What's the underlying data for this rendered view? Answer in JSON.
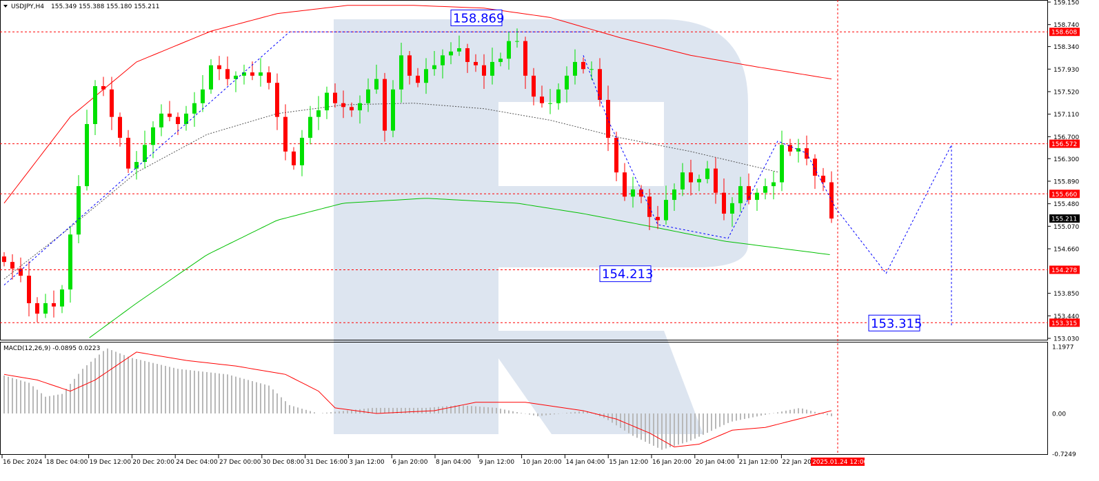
{
  "header": {
    "symbol": "USDJPY,H4",
    "ohlc": "155.349 155.388 155.180 155.211"
  },
  "macd_header": "MACD(12,26,9) -0.0895 0.0223",
  "colors": {
    "bull": "#00e000",
    "bear": "#ff0000",
    "ma_upper": "#ff0000",
    "ma_lower": "#00c000",
    "forecast": "#0000ff",
    "levels": "#ff0000",
    "watermark": "#d9e2ee"
  },
  "chart_data": [
    {
      "type": "candlestick",
      "title": "",
      "ylim": [
        153.03,
        159.15
      ],
      "y_ticks": [
        "159.150",
        "158.740",
        "158.340",
        "157.930",
        "157.520",
        "157.110",
        "156.700",
        "156.300",
        "155.890",
        "155.480",
        "155.070",
        "154.660",
        "153.850",
        "153.440",
        "153.030"
      ],
      "x_ticks": [
        "16 Dec 2024",
        "18 Dec 04:00",
        "19 Dec 12:00",
        "20 Dec 20:00",
        "24 Dec 04:00",
        "27 Dec 00:00",
        "30 Dec 08:00",
        "31 Dec 16:00",
        "3 Jan 12:00",
        "6 Jan 20:00",
        "8 Jan 04:00",
        "9 Jan 12:00",
        "10 Jan 20:00",
        "14 Jan 04:00",
        "15 Jan 12:00",
        "16 Jan 20:00",
        "20 Jan 04:00",
        "21 Jan 12:00",
        "22 Jan 20"
      ],
      "current_time_label": "2025.01.24 12:00",
      "closes": [
        154.42,
        154.3,
        154.17,
        153.67,
        153.48,
        153.67,
        153.61,
        153.92,
        154.92,
        155.8,
        156.93,
        157.62,
        157.56,
        157.06,
        156.68,
        156.12,
        156.24,
        156.55,
        156.87,
        157.12,
        157.06,
        156.93,
        157.12,
        157.31,
        157.56,
        158.0,
        157.93,
        157.75,
        157.81,
        157.87,
        157.81,
        157.87,
        157.68,
        157.06,
        156.43,
        156.18,
        156.68,
        157.06,
        157.18,
        157.5,
        157.31,
        157.24,
        157.18,
        157.31,
        157.56,
        157.75,
        156.81,
        157.56,
        158.18,
        157.81,
        157.68,
        157.93,
        158.0,
        158.18,
        158.25,
        158.31,
        158.06,
        158.0,
        157.81,
        158.06,
        158.12,
        158.44,
        158.44,
        157.81,
        157.43,
        157.31,
        157.31,
        157.56,
        157.81,
        158.06,
        157.93,
        157.93,
        157.37,
        156.68,
        156.05,
        155.61,
        155.74,
        155.61,
        155.24,
        155.18,
        155.55,
        155.74,
        156.05,
        155.87,
        155.93,
        156.12,
        155.68,
        155.3,
        155.49,
        155.8,
        155.55,
        155.68,
        155.8,
        155.87,
        156.55,
        156.43,
        156.49,
        156.3,
        155.99,
        155.87,
        155.211
      ],
      "current_price": "155.211",
      "levels": [
        "158.608",
        "156.572",
        "155.660",
        "154.278",
        "153.315"
      ],
      "ma_upper": [
        [
          0,
          155.49
        ],
        [
          8,
          157.06
        ],
        [
          16,
          158.06
        ],
        [
          25,
          158.62
        ],
        [
          33,
          158.94
        ],
        [
          41.5,
          159.09
        ],
        [
          49.5,
          159.09
        ],
        [
          58,
          159.04
        ],
        [
          66,
          158.87
        ],
        [
          74.5,
          158.5
        ],
        [
          83,
          158.18
        ],
        [
          91,
          157.97
        ],
        [
          100,
          157.75
        ]
      ],
      "ma_lower": [
        [
          10.3,
          153.04
        ],
        [
          16,
          153.67
        ],
        [
          24.5,
          154.55
        ],
        [
          33,
          155.18
        ],
        [
          41,
          155.49
        ],
        [
          51,
          155.58
        ],
        [
          62,
          155.49
        ],
        [
          70,
          155.3
        ],
        [
          78.7,
          155.05
        ],
        [
          87,
          154.8
        ],
        [
          100,
          154.55
        ]
      ],
      "ma_mid": [
        [
          0,
          154.11
        ],
        [
          8,
          155.05
        ],
        [
          16,
          156.05
        ],
        [
          24.5,
          156.74
        ],
        [
          33,
          157.12
        ],
        [
          41,
          157.28
        ],
        [
          49.5,
          157.31
        ],
        [
          58,
          157.21
        ],
        [
          66,
          157.0
        ],
        [
          74.5,
          156.68
        ],
        [
          83,
          156.43
        ],
        [
          93.7,
          156.05
        ]
      ],
      "forecast_paths": [
        [
          [
            0,
            154.0
          ],
          [
            34.5,
            158.608
          ],
          [
            70.5,
            158.608
          ]
        ],
        [
          [
            70,
            158.18
          ],
          [
            73,
            157.0
          ],
          [
            79,
            155.1
          ],
          [
            87.5,
            154.85
          ],
          [
            93.5,
            156.62
          ],
          [
            97,
            156.4
          ],
          [
            100.5,
            155.4
          ],
          [
            106.6,
            154.213
          ],
          [
            114.5,
            156.55
          ],
          [
            114.5,
            153.25
          ]
        ]
      ],
      "annotations": [
        {
          "text": "158.869",
          "at": [
            54,
            158.869
          ]
        },
        {
          "text": "154.213",
          "at": [
            72,
            154.213
          ]
        },
        {
          "text": "153.315",
          "at": [
            104.5,
            153.315
          ]
        }
      ]
    },
    {
      "type": "bar+line",
      "title": "MACD(12,26,9)",
      "ylim": [
        -0.7249,
        1.1977
      ],
      "y_ticks": [
        "1.1977",
        "0.00",
        "-0.7249"
      ],
      "histogram": [
        [
          0,
          0.68
        ],
        [
          3,
          0.55
        ],
        [
          5,
          0.3
        ],
        [
          7,
          0.35
        ],
        [
          9.5,
          0.8
        ],
        [
          12.4,
          1.17
        ],
        [
          15.3,
          1.0
        ],
        [
          21,
          0.8
        ],
        [
          27,
          0.7
        ],
        [
          32,
          0.5
        ],
        [
          34.5,
          0.15
        ],
        [
          38,
          0.0
        ],
        [
          44.5,
          0.1
        ],
        [
          51,
          0.1
        ],
        [
          55,
          0.15
        ],
        [
          59.5,
          0.1
        ],
        [
          64.5,
          -0.05
        ],
        [
          70.3,
          0.05
        ],
        [
          72.8,
          -0.1
        ],
        [
          76,
          -0.4
        ],
        [
          79.5,
          -0.65
        ],
        [
          82.8,
          -0.5
        ],
        [
          87.8,
          -0.15
        ],
        [
          92.8,
          0.0
        ],
        [
          96.2,
          0.1
        ],
        [
          100,
          -0.05
        ]
      ],
      "signal": [
        [
          0,
          0.7
        ],
        [
          4,
          0.6
        ],
        [
          8,
          0.4
        ],
        [
          11,
          0.6
        ],
        [
          16,
          1.1
        ],
        [
          22,
          0.95
        ],
        [
          28,
          0.85
        ],
        [
          34,
          0.7
        ],
        [
          38,
          0.4
        ],
        [
          40,
          0.1
        ],
        [
          45,
          0.0
        ],
        [
          52,
          0.05
        ],
        [
          57,
          0.2
        ],
        [
          63,
          0.2
        ],
        [
          70,
          0.05
        ],
        [
          74,
          -0.1
        ],
        [
          78,
          -0.35
        ],
        [
          81,
          -0.6
        ],
        [
          84,
          -0.55
        ],
        [
          88,
          -0.3
        ],
        [
          92,
          -0.25
        ],
        [
          96,
          -0.1
        ],
        [
          100,
          0.05
        ]
      ]
    }
  ]
}
